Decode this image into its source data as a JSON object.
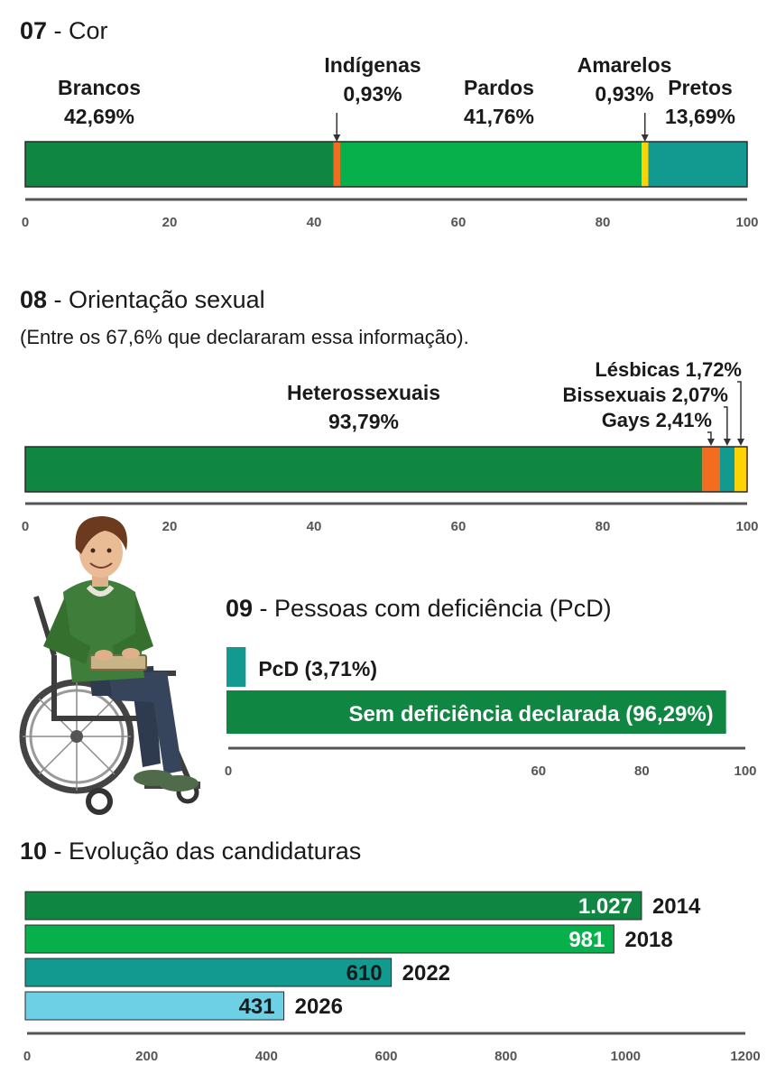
{
  "colors": {
    "dark_green": "#0f8743",
    "green": "#07b04b",
    "teal": "#139a90",
    "orange": "#f26d20",
    "yellow": "#ffd200",
    "light_blue": "#6dd0e4",
    "axis": "#555555"
  },
  "sections": {
    "s07": {
      "number": "07",
      "title": " - Cor"
    },
    "s08": {
      "number": "08",
      "title": " - Orientação sexual",
      "subtitle": "(Entre os 67,6% que declararam essa informação)."
    },
    "s09": {
      "number": "09",
      "title": " - Pessoas com deficiência (PcD)"
    },
    "s10": {
      "number": "10",
      "title": " - Evolução das candidaturas"
    }
  },
  "illustration": {
    "icon": "wheelchair-user-reading-braille-illustration"
  },
  "chart_data": [
    {
      "type": "bar",
      "orientation": "stacked-horizontal",
      "xlim": [
        0,
        100
      ],
      "xticks": [
        "0",
        "20",
        "40",
        "60",
        "80",
        "100"
      ],
      "segments": [
        {
          "name": "Brancos",
          "value": 42.69,
          "label": "42,69%",
          "color": "#0f8743"
        },
        {
          "name": "Indígenas",
          "value": 0.93,
          "label": "0,93%",
          "color": "#f26d20"
        },
        {
          "name": "Pardos",
          "value": 41.76,
          "label": "41,76%",
          "color": "#07b04b"
        },
        {
          "name": "Amarelos",
          "value": 0.93,
          "label": "0,93%",
          "color": "#ffd200"
        },
        {
          "name": "Pretos",
          "value": 13.69,
          "label": "13,69%",
          "color": "#139a90"
        }
      ]
    },
    {
      "type": "bar",
      "orientation": "stacked-horizontal",
      "xlim": [
        0,
        100
      ],
      "xticks": [
        "0",
        "20",
        "40",
        "60",
        "80",
        "100"
      ],
      "segments": [
        {
          "name": "Heterossexuais",
          "value": 93.79,
          "label": "93,79%",
          "color": "#0f8743"
        },
        {
          "name": "Gays",
          "value": 2.41,
          "label": "2,41%",
          "color": "#f26d20"
        },
        {
          "name": "Bissexuais",
          "value": 2.07,
          "label": "2,07%",
          "color": "#139a90"
        },
        {
          "name": "Lésbicas",
          "value": 1.72,
          "label": "1,72%",
          "color": "#ffd200"
        }
      ],
      "callouts": [
        "Lésbicas 1,72%",
        "Bissexuais 2,07%",
        "Gays 2,41%"
      ]
    },
    {
      "type": "bar",
      "orientation": "horizontal",
      "xlim": [
        0,
        100
      ],
      "xticks": [
        "0",
        "60",
        "80",
        "100"
      ],
      "bars": [
        {
          "label": "PcD (3,71%)",
          "value": 3.71,
          "color": "#139a90"
        },
        {
          "label": "Sem deficiência declarada (96,29%)",
          "value": 96.29,
          "color": "#0f8743"
        }
      ]
    },
    {
      "type": "bar",
      "orientation": "horizontal",
      "xlim": [
        0,
        1200
      ],
      "xticks": [
        "0",
        "200",
        "400",
        "600",
        "800",
        "1000",
        "1200"
      ],
      "bars": [
        {
          "year": "2014",
          "value": 1027,
          "value_label": "1.027",
          "color": "#0f8743"
        },
        {
          "year": "2018",
          "value": 981,
          "value_label": "981",
          "color": "#07b04b"
        },
        {
          "year": "2022",
          "value": 610,
          "value_label": "610",
          "color": "#139a90"
        },
        {
          "year": "2026",
          "value": 431,
          "value_label": "431",
          "color": "#6dd0e4"
        }
      ]
    }
  ]
}
